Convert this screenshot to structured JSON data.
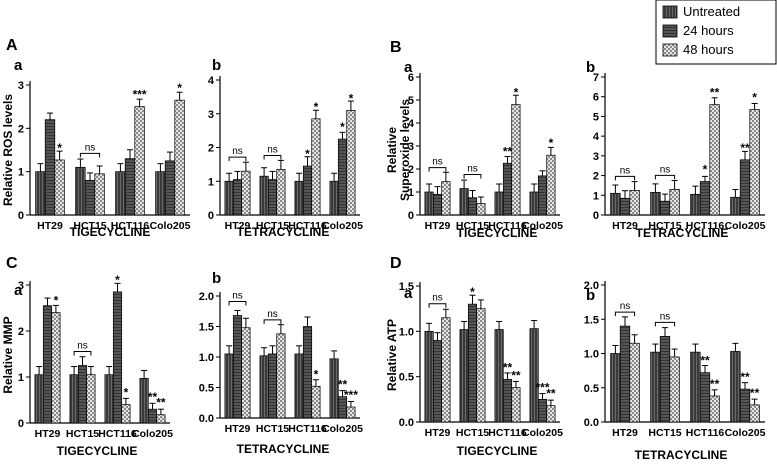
{
  "figure": {
    "legend": [
      {
        "label": "Untreated",
        "pattern": "dark"
      },
      {
        "label": "24 hours",
        "pattern": "mid"
      },
      {
        "label": "48 hours",
        "pattern": "check"
      }
    ],
    "section_letters": {
      "A": "A",
      "B": "B",
      "C": "C",
      "D": "D"
    },
    "drug_labels": {
      "tig": "TIGECYCLINE",
      "tet": "TETRACYCLINE"
    }
  },
  "colors": {
    "dark": "#4a4a4a",
    "mid": "#6a6a6a",
    "check_a": "#9a9a9a",
    "check_b": "#e6e6e6",
    "axis": "#000000"
  },
  "chart_data": [
    {
      "id": "Aa",
      "type": "bar",
      "sub": "a",
      "ylabel": "Relative ROS levels",
      "ylim": [
        0,
        3
      ],
      "yticks": [
        0,
        1,
        2,
        3
      ],
      "categories": [
        "HT29",
        "HCT15",
        "HCT116",
        "Colo205"
      ],
      "series": [
        {
          "name": "Untreated",
          "values": [
            1.0,
            1.1,
            1.0,
            1.0
          ]
        },
        {
          "name": "24 hours",
          "values": [
            2.2,
            0.8,
            1.3,
            1.25
          ]
        },
        {
          "name": "48 hours",
          "values": [
            1.27,
            0.95,
            2.5,
            2.65
          ]
        }
      ],
      "annotations": [
        {
          "cat": 0,
          "ser": 2,
          "text": "*"
        },
        {
          "cat": 2,
          "ser": 2,
          "text": "***"
        },
        {
          "cat": 3,
          "ser": 2,
          "text": "*"
        }
      ],
      "brackets": [
        {
          "cat": 1,
          "text": "ns"
        }
      ]
    },
    {
      "id": "Ab",
      "type": "bar",
      "sub": "b",
      "ylabel": "",
      "ylim": [
        0,
        4
      ],
      "yticks": [
        0,
        1,
        2,
        3,
        4
      ],
      "categories": [
        "HT29",
        "HCT15",
        "HCT116",
        "Colo205"
      ],
      "series": [
        {
          "name": "Untreated",
          "values": [
            1.0,
            1.15,
            1.0,
            1.0
          ]
        },
        {
          "name": "24 hours",
          "values": [
            1.05,
            1.05,
            1.45,
            2.25
          ]
        },
        {
          "name": "48 hours",
          "values": [
            1.3,
            1.35,
            2.85,
            3.1
          ]
        }
      ],
      "annotations": [
        {
          "cat": 2,
          "ser": 1,
          "text": "*"
        },
        {
          "cat": 2,
          "ser": 2,
          "text": "*"
        },
        {
          "cat": 3,
          "ser": 1,
          "text": "*"
        },
        {
          "cat": 3,
          "ser": 2,
          "text": "*"
        }
      ],
      "brackets": [
        {
          "cat": 0,
          "text": "ns"
        },
        {
          "cat": 1,
          "text": "ns"
        }
      ]
    },
    {
      "id": "Ba",
      "type": "bar",
      "sub": "a",
      "ylabel": "Relative Superoxide levels",
      "ylim": [
        0,
        6
      ],
      "yticks": [
        0,
        1,
        2,
        3,
        4,
        5,
        6
      ],
      "categories": [
        "HT29",
        "HCT15",
        "HCT116",
        "Colo205"
      ],
      "series": [
        {
          "name": "Untreated",
          "values": [
            1.0,
            1.15,
            1.0,
            1.0
          ]
        },
        {
          "name": "24 hours",
          "values": [
            0.9,
            0.75,
            2.25,
            1.7
          ]
        },
        {
          "name": "48 hours",
          "values": [
            1.45,
            0.5,
            4.8,
            2.6
          ]
        }
      ],
      "annotations": [
        {
          "cat": 2,
          "ser": 1,
          "text": "**"
        },
        {
          "cat": 2,
          "ser": 2,
          "text": "*"
        },
        {
          "cat": 3,
          "ser": 2,
          "text": "*"
        }
      ],
      "brackets": [
        {
          "cat": 0,
          "text": "ns"
        },
        {
          "cat": 1,
          "text": "ns"
        }
      ]
    },
    {
      "id": "Bb",
      "type": "bar",
      "sub": "b",
      "ylabel": "",
      "ylim": [
        0,
        7
      ],
      "yticks": [
        0,
        1,
        2,
        3,
        4,
        5,
        6,
        7
      ],
      "categories": [
        "HT29",
        "HCT15",
        "HCT116",
        "Colo205"
      ],
      "series": [
        {
          "name": "Untreated",
          "values": [
            1.1,
            1.15,
            1.05,
            0.9
          ]
        },
        {
          "name": "24 hours",
          "values": [
            0.85,
            0.7,
            1.7,
            2.8
          ]
        },
        {
          "name": "48 hours",
          "values": [
            1.25,
            1.3,
            5.6,
            5.35
          ]
        }
      ],
      "annotations": [
        {
          "cat": 2,
          "ser": 1,
          "text": "*"
        },
        {
          "cat": 2,
          "ser": 2,
          "text": "**"
        },
        {
          "cat": 3,
          "ser": 1,
          "text": "**"
        },
        {
          "cat": 3,
          "ser": 2,
          "text": "*"
        }
      ],
      "brackets": [
        {
          "cat": 0,
          "text": "ns"
        },
        {
          "cat": 1,
          "text": "ns"
        }
      ]
    },
    {
      "id": "Ca",
      "type": "bar",
      "sub": "a",
      "ylabel": "Relative MMP",
      "ylim": [
        0,
        3
      ],
      "yticks": [
        0,
        1,
        2,
        3
      ],
      "categories": [
        "HT29",
        "HCT15",
        "HCT116",
        "Colo205"
      ],
      "series": [
        {
          "name": "Untreated",
          "values": [
            1.05,
            1.05,
            1.05,
            0.97
          ]
        },
        {
          "name": "24 hours",
          "values": [
            2.55,
            1.25,
            2.85,
            0.3
          ]
        },
        {
          "name": "48 hours",
          "values": [
            2.4,
            1.05,
            0.4,
            0.18
          ]
        }
      ],
      "annotations": [
        {
          "cat": 0,
          "ser": 2,
          "text": "*"
        },
        {
          "cat": 2,
          "ser": 1,
          "text": "*"
        },
        {
          "cat": 2,
          "ser": 2,
          "text": "*"
        },
        {
          "cat": 3,
          "ser": 1,
          "text": "**"
        },
        {
          "cat": 3,
          "ser": 2,
          "text": "**"
        }
      ],
      "brackets": [
        {
          "cat": 1,
          "text": "ns"
        }
      ]
    },
    {
      "id": "Cb",
      "type": "bar",
      "sub": "b",
      "ylabel": "",
      "ylim": [
        0,
        2.0
      ],
      "yticks": [
        0,
        0.5,
        1.0,
        1.5,
        2.0
      ],
      "tickfmt": 1,
      "categories": [
        "HT29",
        "HCT15",
        "HCT116",
        "Colo205"
      ],
      "series": [
        {
          "name": "Untreated",
          "values": [
            1.05,
            1.02,
            1.05,
            0.97
          ]
        },
        {
          "name": "24 hours",
          "values": [
            1.68,
            1.05,
            1.5,
            0.35
          ]
        },
        {
          "name": "48 hours",
          "values": [
            1.48,
            1.38,
            0.52,
            0.18
          ]
        }
      ],
      "annotations": [
        {
          "cat": 2,
          "ser": 2,
          "text": "*"
        },
        {
          "cat": 3,
          "ser": 1,
          "text": "**"
        },
        {
          "cat": 3,
          "ser": 2,
          "text": "***"
        }
      ],
      "brackets": [
        {
          "cat": 0,
          "text": "ns"
        },
        {
          "cat": 1,
          "text": "ns"
        }
      ]
    },
    {
      "id": "Da",
      "type": "bar",
      "sub": "a",
      "ylabel": "Relative ATP",
      "ylim": [
        0,
        1.5
      ],
      "yticks": [
        0,
        0.5,
        1.0,
        1.5
      ],
      "tickfmt": 1,
      "categories": [
        "HT29",
        "HCT15",
        "HCT116",
        "Colo205"
      ],
      "series": [
        {
          "name": "Untreated",
          "values": [
            1.0,
            1.02,
            1.02,
            1.03
          ]
        },
        {
          "name": "24 hours",
          "values": [
            0.9,
            1.3,
            0.47,
            0.25
          ]
        },
        {
          "name": "48 hours",
          "values": [
            1.15,
            1.25,
            0.38,
            0.18
          ]
        }
      ],
      "annotations": [
        {
          "cat": 1,
          "ser": 1,
          "text": "*"
        },
        {
          "cat": 2,
          "ser": 1,
          "text": "**"
        },
        {
          "cat": 2,
          "ser": 2,
          "text": "**"
        },
        {
          "cat": 3,
          "ser": 1,
          "text": "***"
        },
        {
          "cat": 3,
          "ser": 2,
          "text": "**"
        }
      ],
      "brackets": [
        {
          "cat": 0,
          "text": "ns"
        }
      ]
    },
    {
      "id": "Db",
      "type": "bar",
      "sub": "b",
      "ylabel": "",
      "ylim": [
        0,
        2.0
      ],
      "yticks": [
        0,
        0.5,
        1.0,
        1.5,
        2.0
      ],
      "tickfmt": 1,
      "categories": [
        "HT29",
        "HCT15",
        "HCT116",
        "Colo205"
      ],
      "series": [
        {
          "name": "Untreated",
          "values": [
            1.0,
            1.02,
            1.02,
            1.03
          ]
        },
        {
          "name": "24 hours",
          "values": [
            1.4,
            1.25,
            0.72,
            0.48
          ]
        },
        {
          "name": "48 hours",
          "values": [
            1.15,
            0.95,
            0.38,
            0.25
          ]
        }
      ],
      "annotations": [
        {
          "cat": 2,
          "ser": 1,
          "text": "**"
        },
        {
          "cat": 2,
          "ser": 2,
          "text": "**"
        },
        {
          "cat": 3,
          "ser": 1,
          "text": "**"
        },
        {
          "cat": 3,
          "ser": 2,
          "text": "**"
        }
      ],
      "brackets": [
        {
          "cat": 0,
          "text": "ns"
        },
        {
          "cat": 1,
          "text": "ns"
        }
      ]
    }
  ]
}
